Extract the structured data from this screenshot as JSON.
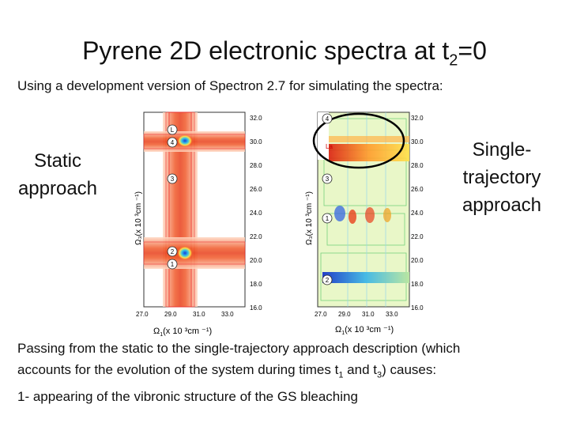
{
  "slide": {
    "title_main": "Pyrene 2D electronic spectra at t",
    "title_sub": "2",
    "title_tail": "=0",
    "subtitle": "Using a development version of Spectron 2.7 for simulating the spectra:",
    "left_label": "Static approach",
    "right_label": "Single-trajectory approach",
    "bottom": {
      "line1": "Passing from the static to the single-trajectory approach description (which",
      "line2_a": "accounts for the evolution of the system during times t",
      "line2_sub1": "1",
      "line2_b": " and t",
      "line2_sub2": "3",
      "line2_c": ") causes:",
      "line3": "1- appearing of the vibronic structure of the GS bleaching"
    }
  },
  "plots": {
    "x_tick_labels": [
      "27.0",
      "29.0",
      "31.0",
      "33.0"
    ],
    "y_tick_labels": [
      "32.0",
      "30.0",
      "28.0",
      "26.0",
      "24.0",
      "22.0",
      "20.0",
      "18.0",
      "16.0"
    ],
    "left": {
      "xlabel_main": "Ω",
      "xlabel_sub": "1",
      "xlabel_tail": "(x 10 ³cm ⁻¹)",
      "ylabel": "Ω₃(x 10 ³cm ⁻¹)",
      "state_markers": [
        "L",
        "4",
        "3",
        "2",
        "1"
      ]
    },
    "right": {
      "xlabel_main": "Ω",
      "xlabel_sub": "1",
      "xlabel_tail": "(x 10 ³cm ⁻¹)",
      "ylabel": "Ω₃(x 10 ³cm ⁻¹)",
      "state_markers": [
        "4",
        "La",
        "3",
        "1",
        "2"
      ]
    }
  }
}
